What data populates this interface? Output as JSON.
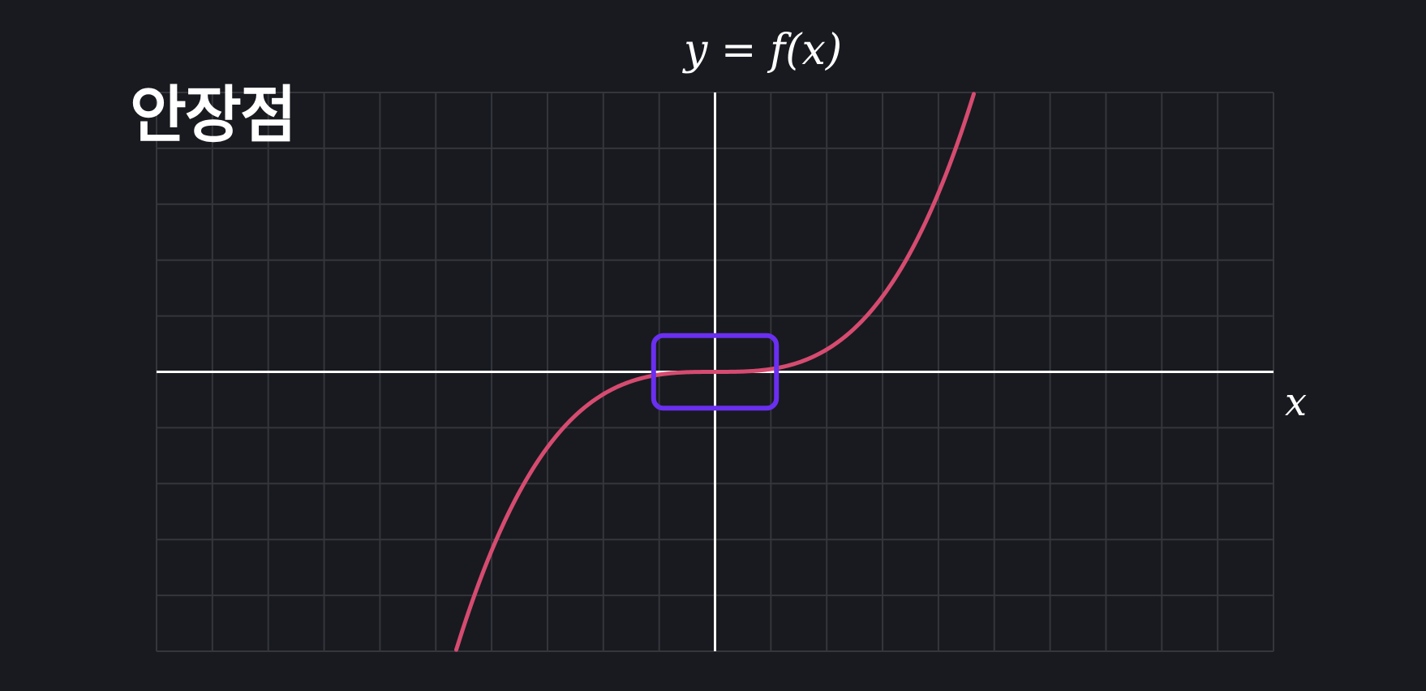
{
  "heading": "안장점",
  "formula": "y = f(x)",
  "x_axis_label": "x",
  "colors": {
    "background": "#181a1f",
    "grid": "#34363c",
    "axis": "#ffffff",
    "curve": "#d64b70",
    "highlight": "#6a2ff0"
  },
  "diagram": {
    "x_range": [
      -10,
      10
    ],
    "y_range": [
      -5,
      5
    ],
    "function": "cubic",
    "curve_coefficient": 0.05,
    "highlight": {
      "x_center": 0,
      "y_center": 0,
      "x_half_width": 1.1,
      "y_half_height": 0.65
    }
  }
}
